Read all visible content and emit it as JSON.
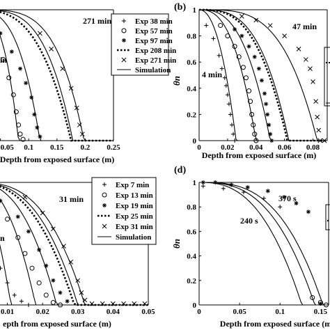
{
  "chart_data": [
    {
      "id": "a",
      "type": "line",
      "xlabel": "Depth from exposed surface (m)",
      "ylabel": "",
      "xlim": [
        0,
        0.25
      ],
      "ylim": [
        0,
        1
      ],
      "xticks": [
        "0.05",
        "0.1",
        "0.15",
        "0.2",
        "0.25"
      ],
      "xtick_values": [
        0.05,
        0.1,
        0.15,
        0.2,
        0.25
      ],
      "annotations": [
        {
          "text": "271 min",
          "x": 0.153,
          "y": 0.905
        },
        {
          "text": "in",
          "x": 0.0,
          "y": 0.65
        }
      ],
      "legend": [
        {
          "label": "Exp 38 min",
          "marker": "plus"
        },
        {
          "label": "Exp 57 min",
          "marker": "circle"
        },
        {
          "label": "Exp 97 min",
          "marker": "star"
        },
        {
          "label": "Exp 208 min",
          "marker": "dotted"
        },
        {
          "label": "Exp 271 min",
          "marker": "x"
        },
        {
          "label": "Simulation",
          "marker": "line"
        }
      ],
      "series": [
        {
          "curve": {
            "x0": 0.0,
            "xe": 0.023,
            "p": 2.6
          },
          "exp": {
            "type": "plus",
            "points": [
              [
                0.005,
                0.8
              ],
              [
                0.01,
                0.7
              ],
              [
                0.015,
                0.5
              ],
              [
                0.02,
                0.22
              ],
              [
                0.023,
                0.05
              ]
            ]
          }
        },
        {
          "curve": {
            "x0": 0.0,
            "xe": 0.082,
            "p": 3.2
          },
          "exp": {
            "type": "circle",
            "points": [
              [
                0.02,
                0.9
              ],
              [
                0.04,
                0.78
              ],
              [
                0.055,
                0.62
              ],
              [
                0.065,
                0.48
              ],
              [
                0.073,
                0.35
              ],
              [
                0.078,
                0.22
              ],
              [
                0.082,
                0.12
              ],
              [
                0.085,
                0.05
              ],
              [
                0.09,
                0.01
              ]
            ]
          }
        },
        {
          "curve": {
            "x0": 0.0,
            "xe": 0.12,
            "p": 3.2
          },
          "exp": {
            "type": "star",
            "points": [
              [
                0.05,
                0.82
              ],
              [
                0.07,
                0.68
              ],
              [
                0.085,
                0.55
              ],
              [
                0.095,
                0.44
              ],
              [
                0.105,
                0.33
              ],
              [
                0.11,
                0.2
              ],
              [
                0.115,
                0.1
              ],
              [
                0.12,
                0.03
              ]
            ]
          }
        },
        {
          "curve": {
            "x0": 0.0,
            "xe": 0.178,
            "p": 3.8
          },
          "exp": {
            "type": "dotted",
            "curve": {
              "x0": 0.0,
              "xe": 0.175,
              "p": 3.2
            }
          }
        },
        {
          "curve": {
            "x0": 0.0,
            "xe": 0.198,
            "p": 4.2
          },
          "exp": {
            "type": "x",
            "points": [
              [
                0.12,
                0.82
              ],
              [
                0.14,
                0.7
              ],
              [
                0.16,
                0.55
              ],
              [
                0.175,
                0.4
              ],
              [
                0.185,
                0.25
              ],
              [
                0.19,
                0.12
              ],
              [
                0.195,
                0.05
              ]
            ]
          }
        }
      ]
    },
    {
      "id": "b",
      "type": "line",
      "label": "(b)",
      "xlabel": "Depth from exposed surface (m)",
      "ylabel": "θn",
      "xlim": [
        0,
        0.09
      ],
      "ylim": [
        0,
        1
      ],
      "xticks": [
        "0",
        "0.02",
        "0.04",
        "0.06",
        "0.08"
      ],
      "xtick_values": [
        0,
        0.02,
        0.04,
        0.06,
        0.08
      ],
      "yticks": [
        "0",
        "0.2",
        "0.4",
        "0.6",
        "0.8",
        "1"
      ],
      "ytick_values": [
        0,
        0.2,
        0.4,
        0.6,
        0.8,
        1
      ],
      "annotations": [
        {
          "text": "47 min",
          "x": 0.065,
          "y": 0.87
        },
        {
          "text": "4 min",
          "x": 0.007,
          "y": 0.45
        }
      ],
      "series": [
        {
          "curve": {
            "x0": 0.0,
            "xe": 0.026,
            "p": 2.2
          },
          "exp": {
            "type": "plus",
            "points": [
              [
                0.005,
                0.88
              ],
              [
                0.01,
                0.78
              ],
              [
                0.014,
                0.65
              ],
              [
                0.016,
                0.55
              ],
              [
                0.018,
                0.48
              ],
              [
                0.019,
                0.42
              ],
              [
                0.02,
                0.35
              ],
              [
                0.021,
                0.28
              ],
              [
                0.022,
                0.2
              ],
              [
                0.023,
                0.12
              ],
              [
                0.024,
                0.05
              ],
              [
                0.025,
                0.0
              ]
            ]
          }
        },
        {
          "curve": {
            "x0": 0.0,
            "xe": 0.04,
            "p": 2.6
          },
          "exp": {
            "type": "circle",
            "points": [
              [
                0.015,
                0.88
              ],
              [
                0.02,
                0.8
              ],
              [
                0.025,
                0.72
              ],
              [
                0.028,
                0.64
              ],
              [
                0.031,
                0.56
              ],
              [
                0.033,
                0.48
              ],
              [
                0.035,
                0.38
              ],
              [
                0.036,
                0.3
              ],
              [
                0.037,
                0.2
              ],
              [
                0.038,
                0.12
              ],
              [
                0.039,
                0.05
              ],
              [
                0.04,
                0.0
              ]
            ]
          }
        },
        {
          "curve": {
            "x0": 0.0,
            "xe": 0.05,
            "p": 2.8
          },
          "exp": {
            "type": "star",
            "points": [
              [
                0.025,
                0.85
              ],
              [
                0.03,
                0.8
              ],
              [
                0.035,
                0.72
              ],
              [
                0.039,
                0.64
              ],
              [
                0.042,
                0.55
              ],
              [
                0.044,
                0.46
              ],
              [
                0.046,
                0.36
              ],
              [
                0.047,
                0.28
              ],
              [
                0.048,
                0.2
              ],
              [
                0.049,
                0.12
              ],
              [
                0.05,
                0.05
              ],
              [
                0.051,
                0.0
              ]
            ]
          }
        },
        {
          "curve": {
            "x0": 0.0,
            "xe": 0.063,
            "p": 3.2
          },
          "exp": {
            "type": "dotted",
            "curve": {
              "x0": 0.0,
              "xe": 0.062,
              "p": 3.0
            }
          }
        },
        {
          "curve": {
            "x0": 0.0,
            "xe": 0.083,
            "p": 3.6
          },
          "exp": {
            "type": "x",
            "points": [
              [
                0.03,
                0.95
              ],
              [
                0.04,
                0.92
              ],
              [
                0.05,
                0.88
              ],
              [
                0.06,
                0.8
              ],
              [
                0.07,
                0.7
              ],
              [
                0.075,
                0.62
              ],
              [
                0.078,
                0.55
              ],
              [
                0.08,
                0.45
              ],
              [
                0.082,
                0.3
              ],
              [
                0.083,
                0.18
              ],
              [
                0.084,
                0.08
              ],
              [
                0.085,
                0.0
              ],
              [
                0.088,
                0.0
              ]
            ]
          }
        }
      ]
    },
    {
      "id": "c",
      "type": "line",
      "xlabel": "epth from exposed surface (m)",
      "ylabel": "",
      "xlim": [
        0,
        0.05
      ],
      "ylim": [
        0,
        1
      ],
      "xticks": [
        "0.01",
        "0.02",
        "0.03",
        "0.04",
        "0.05"
      ],
      "xtick_values": [
        0.01,
        0.02,
        0.03,
        0.04,
        0.05
      ],
      "annotations": [
        {
          "text": "31 min",
          "x": 0.023,
          "y": 0.87
        },
        {
          "text": "n",
          "x": 0.0,
          "y": 0.6
        }
      ],
      "legend": [
        {
          "label": "Exp 7 min",
          "marker": "plus"
        },
        {
          "label": "Exp 13 min",
          "marker": "circle"
        },
        {
          "label": "Exp 19 min",
          "marker": "star"
        },
        {
          "label": "Exp 25 min",
          "marker": "dotted"
        },
        {
          "label": "Exp 31 min",
          "marker": "x"
        },
        {
          "label": "Simulation",
          "marker": "line"
        }
      ],
      "series": [
        {
          "curve": {
            "x0": 0.0,
            "xe": 0.011,
            "p": 2.0
          },
          "exp": {
            "type": "plus",
            "points": [
              [
                0.004,
                0.6
              ],
              [
                0.006,
                0.45
              ],
              [
                0.008,
                0.3
              ],
              [
                0.01,
                0.18
              ],
              [
                0.012,
                0.08
              ],
              [
                0.014,
                0.03
              ],
              [
                0.016,
                0.0
              ]
            ]
          }
        },
        {
          "curve": {
            "x0": 0.0,
            "xe": 0.018,
            "p": 2.4
          },
          "exp": {
            "type": "circle",
            "points": [
              [
                0.005,
                0.85
              ],
              [
                0.01,
                0.7
              ],
              [
                0.013,
                0.55
              ],
              [
                0.015,
                0.42
              ],
              [
                0.017,
                0.3
              ],
              [
                0.019,
                0.18
              ],
              [
                0.021,
                0.08
              ],
              [
                0.023,
                0.02
              ],
              [
                0.025,
                0.0
              ]
            ]
          }
        },
        {
          "curve": {
            "x0": 0.0,
            "xe": 0.024,
            "p": 2.6
          },
          "exp": {
            "type": "star",
            "points": [
              [
                0.008,
                0.85
              ],
              [
                0.013,
                0.72
              ],
              [
                0.016,
                0.6
              ],
              [
                0.019,
                0.45
              ],
              [
                0.021,
                0.32
              ],
              [
                0.023,
                0.2
              ],
              [
                0.025,
                0.1
              ],
              [
                0.027,
                0.03
              ]
            ]
          }
        },
        {
          "curve": {
            "x0": 0.0,
            "xe": 0.03,
            "p": 2.8
          },
          "exp": {
            "type": "dotted",
            "curve": {
              "x0": 0.0,
              "xe": 0.029,
              "p": 2.6
            }
          }
        },
        {
          "curve": {
            "x0": 0.0,
            "xe": 0.032,
            "p": 3.0
          },
          "exp": {
            "type": "x",
            "points": [
              [
                0.015,
                0.88
              ],
              [
                0.02,
                0.75
              ],
              [
                0.023,
                0.62
              ],
              [
                0.026,
                0.48
              ],
              [
                0.028,
                0.35
              ],
              [
                0.03,
                0.2
              ],
              [
                0.031,
                0.1
              ],
              [
                0.032,
                0.04
              ],
              [
                0.034,
                0.01
              ],
              [
                0.037,
                0.01
              ],
              [
                0.04,
                0.01
              ],
              [
                0.043,
                0.01
              ],
              [
                0.046,
                0.01
              ],
              [
                0.049,
                0.01
              ]
            ]
          }
        }
      ]
    },
    {
      "id": "d",
      "type": "line",
      "label": "(d)",
      "xlabel": "Depth from exposed surface (m",
      "ylabel": "θn",
      "xlim": [
        0,
        0.16
      ],
      "ylim": [
        0,
        1
      ],
      "xticks": [
        "0",
        "0.05",
        "0.1",
        "0.15"
      ],
      "xtick_values": [
        0,
        0.05,
        0.1,
        0.15
      ],
      "yticks": [
        "0",
        "0.2",
        "0.4",
        "0.6",
        "0.8",
        "1"
      ],
      "ytick_values": [
        0,
        0.2,
        0.4,
        0.6,
        0.8,
        1
      ],
      "annotations": [
        {
          "text": "370 s",
          "x": 0.1,
          "y": 0.87
        },
        {
          "text": "240 s",
          "x": 0.05,
          "y": 0.64
        }
      ],
      "series": [
        {
          "curve": {
            "x0": 0.0,
            "xe": 0.127,
            "p": 2.6
          },
          "exp": {
            "type": "plus",
            "points": [
              [
                0.005,
                0.97
              ],
              [
                0.03,
                0.95
              ],
              [
                0.055,
                0.92
              ],
              [
                0.08,
                0.87
              ],
              [
                0.1,
                0.8
              ]
            ]
          }
        },
        {
          "curve": {
            "x0": 0.0,
            "xe": 0.153,
            "p": 3.0
          },
          "exp": {
            "type": "star",
            "points": [
              [
                0.005,
                1.0
              ],
              [
                0.02,
                1.0
              ],
              [
                0.04,
                0.98
              ],
              [
                0.06,
                0.96
              ],
              [
                0.085,
                0.93
              ],
              [
                0.105,
                0.88
              ],
              [
                0.12,
                0.83
              ],
              [
                0.135,
                0.76
              ],
              [
                0.15,
                0.01
              ]
            ]
          }
        },
        {
          "curve": {
            "x0": 0.0,
            "xe": 0.143,
            "p": 2.8
          },
          "exp": {
            "type": "circle",
            "points": [
              [
                0.14,
                0.06
              ],
              [
                0.15,
                0.02
              ],
              [
                0.157,
                0.0
              ]
            ]
          }
        }
      ]
    }
  ]
}
